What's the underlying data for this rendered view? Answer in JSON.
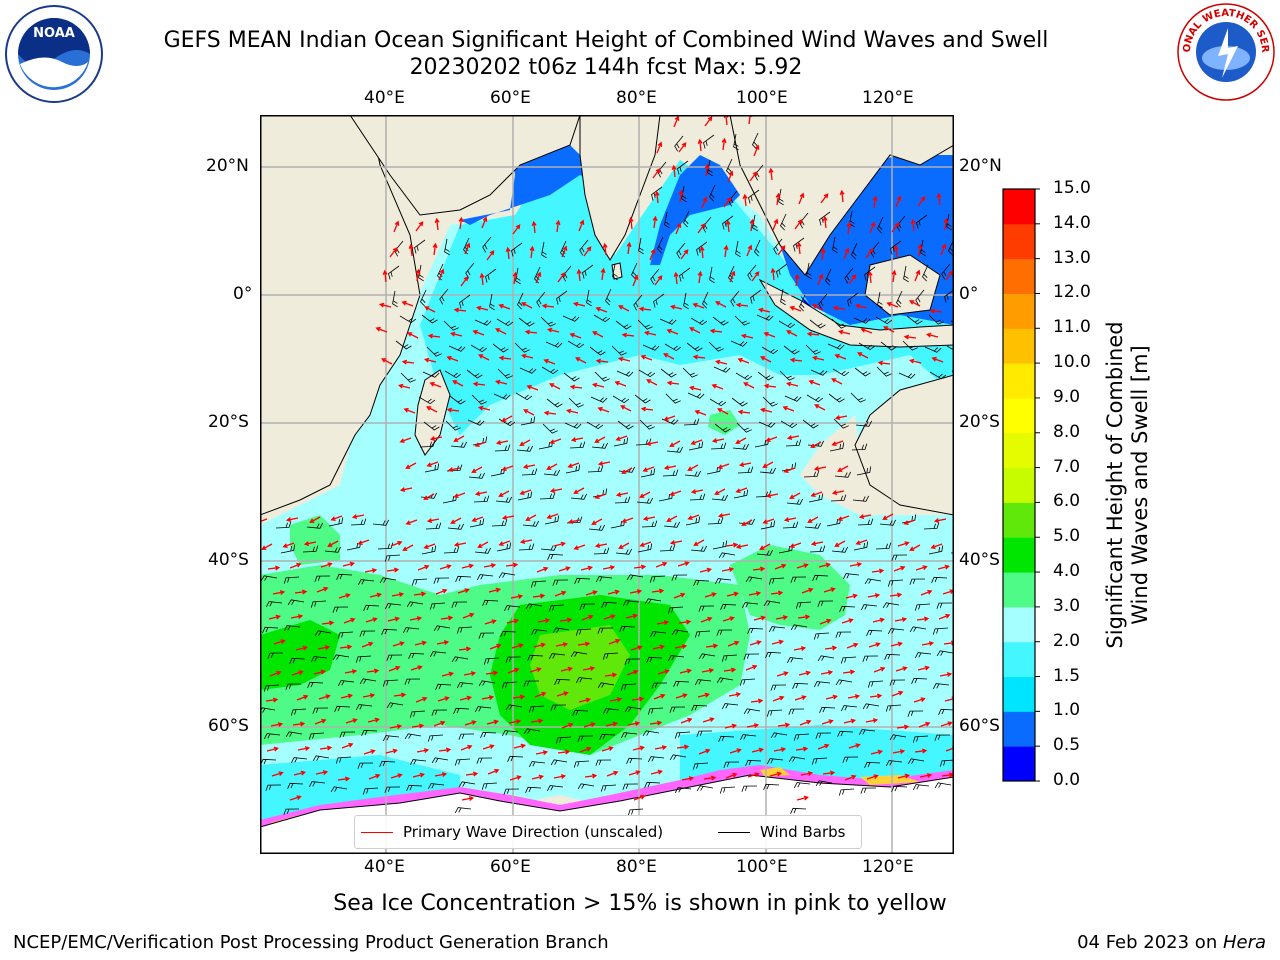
{
  "title": {
    "line1": "GEFS MEAN Indian Ocean Significant Height of Combined Wind Waves and Swell",
    "line2": "20230202 t06z 144h fcst   Max: 5.92"
  },
  "map": {
    "lon_ticks": [
      "40°E",
      "60°E",
      "80°E",
      "100°E",
      "120°E"
    ],
    "lat_ticks": [
      "20°N",
      "0°",
      "20°S",
      "40°S",
      "60°S"
    ],
    "land_color": "#efecdc",
    "grid_color": "#b0b0b0"
  },
  "colorbar": {
    "label": "Significant Height of Combined Wind Waves and Swell [m]",
    "label_line1": "Significant Height of Combined",
    "label_line2": "Wind Waves and Swell [m]",
    "ticks": [
      "0.0",
      "0.5",
      "1.0",
      "1.5",
      "2.0",
      "3.0",
      "4.0",
      "5.0",
      "6.0",
      "7.0",
      "8.0",
      "9.0",
      "10.0",
      "11.0",
      "12.0",
      "13.0",
      "14.0",
      "15.0"
    ],
    "colors": [
      "#0000ff",
      "#0a6bff",
      "#00e5ff",
      "#44f6ff",
      "#a6ffff",
      "#4dfb86",
      "#00e600",
      "#5fe80a",
      "#c6fb00",
      "#e4fb00",
      "#ffff00",
      "#ffea00",
      "#ffc000",
      "#ff9c00",
      "#ff6e00",
      "#ff3c00",
      "#ff0000"
    ]
  },
  "legend": {
    "wave_label": "Primary Wave Direction (unscaled)",
    "wind_label": "Wind Barbs",
    "wave_color": "#ff0000",
    "wind_color": "#000000"
  },
  "note": "Sea Ice Concentration > 15% is shown in pink to yellow",
  "footer": {
    "left": "NCEP/EMC/Verification Post Processing Product Generation Branch",
    "right_date": "04 Feb 2023 on ",
    "right_host": "Hera"
  },
  "logos": {
    "noaa": "NOAA",
    "nws_ring": "NATIONAL WEATHER SERVICE"
  }
}
